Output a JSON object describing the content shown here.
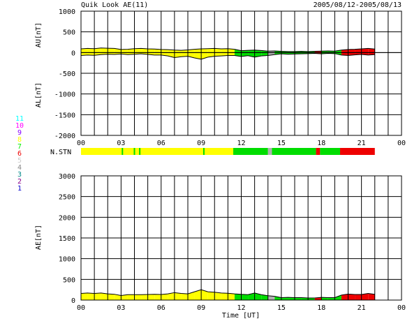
{
  "header": {
    "title": "Quik Look AE(11)",
    "date_range": "2005/08/12-2005/08/13"
  },
  "x_axis_label": "Time [UT]",
  "colors": {
    "yellow": "#ffff00",
    "green": "#00dd00",
    "red": "#ee0000",
    "gray": "#b0b0b0",
    "line": "#000000"
  },
  "station_legend": [
    {
      "label": "11",
      "color": "#00ffff"
    },
    {
      "label": "10",
      "color": "#ff00ff"
    },
    {
      "label": "9",
      "color": "#8800ff"
    },
    {
      "label": "8",
      "color": "#ffff00"
    },
    {
      "label": "7",
      "color": "#00ee00"
    },
    {
      "label": "6",
      "color": "#ee0000"
    },
    {
      "label": "5",
      "color": "#cccccc"
    },
    {
      "label": "4",
      "color": "#888888"
    },
    {
      "label": "3",
      "color": "#008888"
    },
    {
      "label": "2",
      "color": "#880088"
    },
    {
      "label": "1",
      "color": "#0000cc"
    }
  ],
  "nstn": {
    "label": "N.STN",
    "segments": [
      {
        "start": 0,
        "end": 11.4,
        "count": 8
      },
      {
        "start": 11.4,
        "end": 14.0,
        "count": 7
      },
      {
        "start": 14.0,
        "end": 14.3,
        "count": 5
      },
      {
        "start": 14.3,
        "end": 17.6,
        "count": 7
      },
      {
        "start": 17.6,
        "end": 17.9,
        "count": 6
      },
      {
        "start": 17.9,
        "end": 19.4,
        "count": 7
      },
      {
        "start": 19.4,
        "end": 22.0,
        "count": 6
      }
    ],
    "ticks": [
      3.1,
      4.0,
      4.4,
      9.2
    ]
  },
  "chart_data": [
    {
      "type": "area",
      "title": "Quik Look AE(11)",
      "ylabel_top": "AU[nT]",
      "ylabel_bottom": "AL[nT]",
      "xlabel": "",
      "xlim": [
        0,
        24
      ],
      "ylim": [
        -2000,
        1000
      ],
      "x_tick_labels": [
        "00",
        "03",
        "06",
        "09",
        "12",
        "15",
        "18",
        "21",
        "00"
      ],
      "y_tick_labels": [
        "1000",
        "500",
        "0",
        "-500",
        "-1000",
        "-1500",
        "-2000"
      ],
      "series": [
        {
          "key": "AU",
          "x": [
            0,
            0.5,
            1,
            1.5,
            2,
            2.5,
            3,
            3.5,
            4,
            4.5,
            5,
            5.5,
            6,
            6.5,
            7,
            7.5,
            8,
            8.5,
            9,
            9.5,
            10,
            10.5,
            11,
            11.5,
            12,
            12.5,
            13,
            13.5,
            14,
            14.5,
            15,
            15.5,
            16,
            16.5,
            17,
            17.5,
            18,
            18.5,
            19,
            19.5,
            20,
            20.5,
            21,
            21.5,
            22
          ],
          "values": [
            90,
            100,
            95,
            110,
            105,
            100,
            75,
            80,
            95,
            100,
            90,
            85,
            75,
            70,
            60,
            55,
            65,
            80,
            90,
            95,
            100,
            90,
            95,
            80,
            45,
            55,
            60,
            50,
            35,
            40,
            30,
            25,
            25,
            30,
            25,
            30,
            35,
            40,
            35,
            60,
            75,
            80,
            90,
            100,
            85
          ]
        },
        {
          "key": "AL",
          "x": [
            0,
            0.5,
            1,
            1.5,
            2,
            2.5,
            3,
            3.5,
            4,
            4.5,
            5,
            5.5,
            6,
            6.5,
            7,
            7.5,
            8,
            8.5,
            9,
            9.5,
            10,
            10.5,
            11,
            11.5,
            12,
            12.5,
            13,
            13.5,
            14,
            14.5,
            15,
            15.5,
            16,
            16.5,
            17,
            17.5,
            18,
            18.5,
            19,
            19.5,
            20,
            20.5,
            21,
            21.5,
            22
          ],
          "values": [
            -70,
            -60,
            -65,
            -50,
            -40,
            -45,
            -35,
            -50,
            -40,
            -30,
            -45,
            -60,
            -60,
            -80,
            -120,
            -100,
            -90,
            -130,
            -160,
            -110,
            -90,
            -80,
            -70,
            -70,
            -95,
            -75,
            -110,
            -80,
            -70,
            -50,
            -30,
            -40,
            -35,
            -30,
            -25,
            -20,
            -30,
            -20,
            -25,
            -60,
            -70,
            -55,
            -45,
            -60,
            -50
          ]
        }
      ]
    },
    {
      "type": "area",
      "title": "",
      "ylabel": "AE[nT]",
      "xlabel": "Time [UT]",
      "xlim": [
        0,
        24
      ],
      "ylim": [
        0,
        3000
      ],
      "x_tick_labels": [
        "00",
        "03",
        "06",
        "09",
        "12",
        "15",
        "18",
        "21",
        "00"
      ],
      "y_tick_labels": [
        "3000",
        "2500",
        "2000",
        "1500",
        "1000",
        "500",
        "0"
      ],
      "series": [
        {
          "key": "AE",
          "x": [
            0,
            0.5,
            1,
            1.5,
            2,
            2.5,
            3,
            3.5,
            4,
            4.5,
            5,
            5.5,
            6,
            6.5,
            7,
            7.5,
            8,
            8.5,
            9,
            9.5,
            10,
            10.5,
            11,
            11.5,
            12,
            12.5,
            13,
            13.5,
            14,
            14.5,
            15,
            15.5,
            16,
            16.5,
            17,
            17.5,
            18,
            18.5,
            19,
            19.5,
            20,
            20.5,
            21,
            21.5,
            22
          ],
          "values": [
            160,
            170,
            160,
            170,
            150,
            140,
            110,
            130,
            130,
            130,
            135,
            140,
            135,
            150,
            180,
            160,
            150,
            200,
            250,
            200,
            190,
            170,
            165,
            150,
            140,
            130,
            170,
            130,
            105,
            90,
            60,
            65,
            60,
            60,
            50,
            50,
            65,
            60,
            60,
            120,
            145,
            135,
            135,
            160,
            140
          ]
        }
      ]
    }
  ]
}
